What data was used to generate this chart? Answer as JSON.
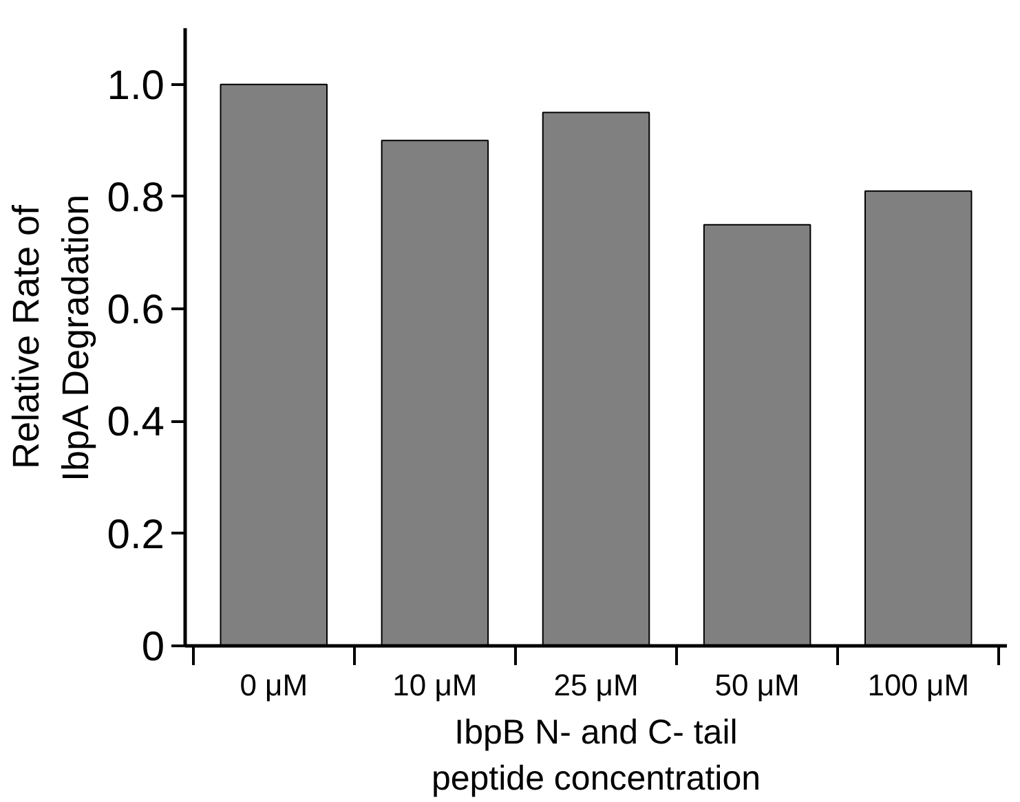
{
  "chart_data": {
    "type": "bar",
    "categories": [
      "0 μM",
      "10 μM",
      "25 μM",
      "50 μM",
      "100 μM"
    ],
    "values": [
      1.0,
      0.9,
      0.95,
      0.75,
      0.81
    ],
    "color": "#808080",
    "xlabel": "IbpB N- and C- tail peptide concentration",
    "ylabel": "Relative Rate of IbpA Degradation",
    "ylim": [
      0,
      1.1
    ],
    "yticks": [
      0,
      0.2,
      0.4,
      0.6,
      0.8,
      {
        "value": 1.0,
        "label": "1.0"
      }
    ],
    "grid": false
  }
}
